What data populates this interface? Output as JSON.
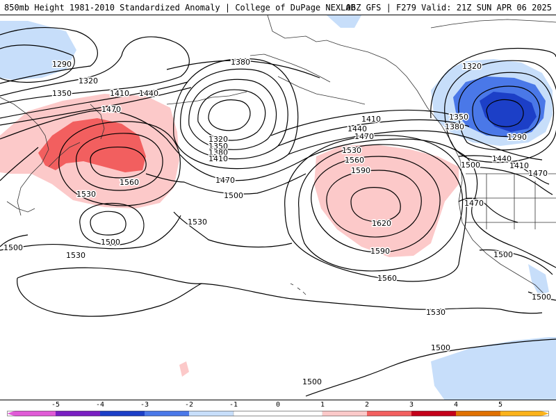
{
  "header": {
    "left_title": "850mb Height 1981-2010 Standardized Anomaly | College of DuPage NEXLAB",
    "right_title": "06Z GFS | F279 Valid: 21Z SUN APR 06 2025"
  },
  "colorbar": {
    "tick_labels": [
      "-5",
      "-4",
      "-3",
      "-2",
      "-1",
      "0",
      "1",
      "2",
      "3",
      "4",
      "5"
    ],
    "colors": {
      "neg5": "#e05ad6",
      "neg4": "#7a1fc2",
      "neg3": "#1c3fc7",
      "neg2": "#4a78e8",
      "neg1": "#c7defa",
      "zero": "#ffffff",
      "pos1": "#fcc9c9",
      "pos2": "#f25f5f",
      "pos3": "#c4001a",
      "pos4": "#e07000",
      "pos5": "#fbb21a"
    }
  },
  "contour_labels": [
    "1290",
    "1320",
    "1350",
    "1410",
    "1440",
    "1470",
    "1380",
    "1320",
    "1350",
    "1380",
    "1410",
    "1470",
    "1500",
    "1560",
    "1530",
    "1500",
    "1500",
    "1530",
    "1530",
    "1410",
    "1440",
    "1470",
    "1530",
    "1560",
    "1590",
    "1620",
    "1590",
    "1560",
    "1530",
    "1500",
    "1500",
    "1320",
    "1350",
    "1380",
    "1290",
    "1440",
    "1410",
    "1470",
    "1500",
    "1470",
    "1500",
    "1500"
  ],
  "anomaly_regions": [
    {
      "name": "west-pacific-positive",
      "value": "2"
    },
    {
      "name": "central-pacific-positive",
      "value": "1"
    },
    {
      "name": "canada-negative",
      "value": "-3"
    }
  ]
}
